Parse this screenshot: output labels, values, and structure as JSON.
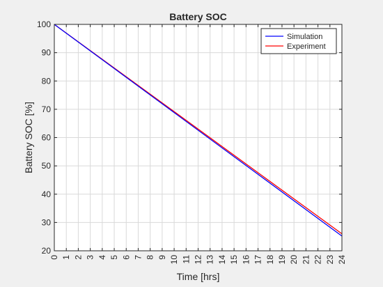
{
  "colors": {
    "figure_background": "#f0f0f0",
    "axes_background": "#ffffff",
    "grid": "#d9d9d9",
    "axis": "#262626",
    "simulation": "#0000ff",
    "experiment": "#ff0000"
  },
  "chart_data": {
    "type": "line",
    "title": "Battery SOC",
    "xlabel": "Time [hrs]",
    "ylabel": "Battery SOC [%]",
    "xlim": [
      0,
      24
    ],
    "ylim": [
      20,
      100
    ],
    "xticks": [
      0,
      1,
      2,
      3,
      4,
      5,
      6,
      7,
      8,
      9,
      10,
      11,
      12,
      13,
      14,
      15,
      16,
      17,
      18,
      19,
      20,
      21,
      22,
      23,
      24
    ],
    "yticks": [
      20,
      30,
      40,
      50,
      60,
      70,
      80,
      90,
      100
    ],
    "grid": true,
    "legend_position": "top-right",
    "series": [
      {
        "name": "Simulation",
        "color": "#0000ff",
        "x": [
          0,
          24
        ],
        "y": [
          100,
          25.2
        ]
      },
      {
        "name": "Experiment",
        "color": "#ff0000",
        "x": [
          0,
          24
        ],
        "y": [
          100,
          26
        ]
      }
    ]
  }
}
